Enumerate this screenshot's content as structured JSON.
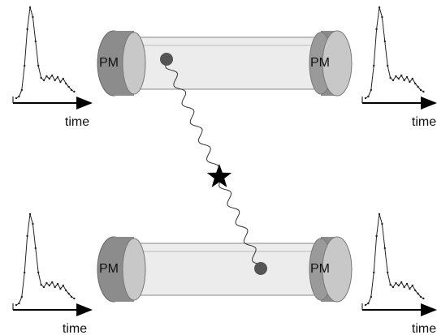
{
  "modules": [
    {
      "pm_left": "PM",
      "pm_right": "PM",
      "time_left": "time",
      "time_right": "time"
    },
    {
      "pm_left": "PM",
      "pm_right": "PM",
      "time_left": "time",
      "time_right": "time"
    }
  ]
}
